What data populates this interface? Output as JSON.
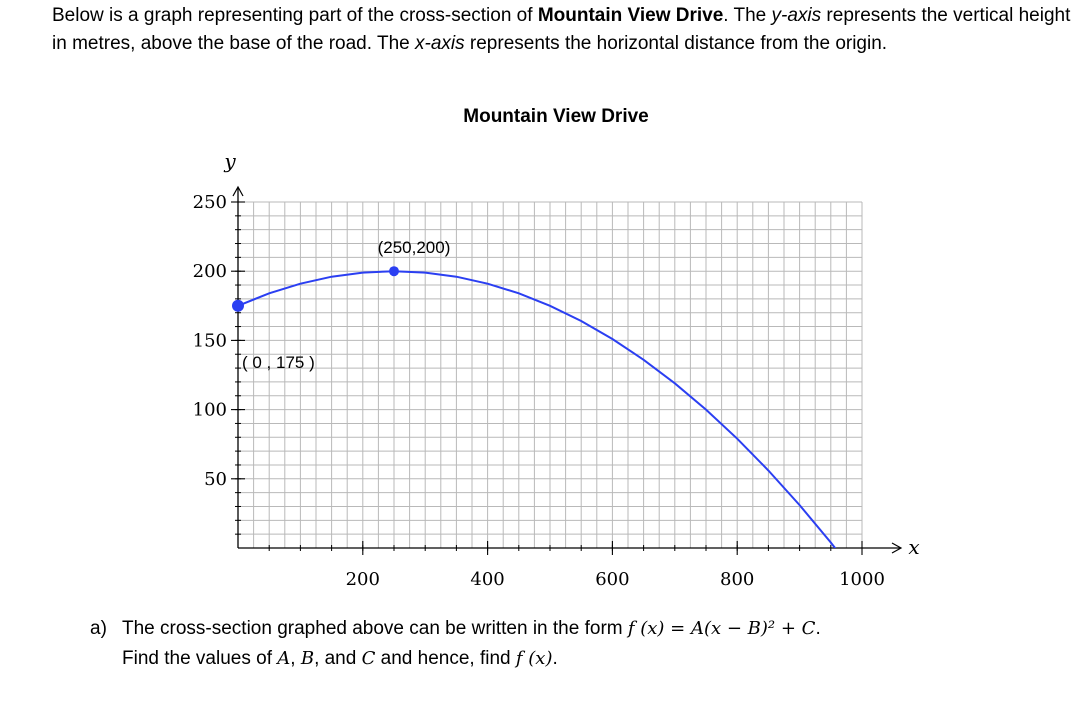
{
  "intro": {
    "t1": "Below is a graph representing part of the cross-section of ",
    "road": "Mountain View Drive",
    "t2": ".  The ",
    "yaxis": "y-axis",
    "t3": " represents the vertical height in metres, above the base of the road. The ",
    "xaxis": "x-axis",
    "t4": " represents the horizontal distance from the origin."
  },
  "chart_data": {
    "type": "line",
    "title": "Mountain View Drive",
    "xlabel": "x",
    "ylabel": "y",
    "xlim": [
      0,
      1000
    ],
    "ylim": [
      0,
      250
    ],
    "xticks": [
      200,
      400,
      600,
      800,
      1000
    ],
    "yticks": [
      50,
      100,
      150,
      200,
      250
    ],
    "grid": true,
    "series": [
      {
        "x": [
          0,
          50,
          100,
          150,
          200,
          250,
          300,
          350,
          400,
          450,
          500,
          550,
          600,
          650,
          700,
          750,
          800,
          850,
          900,
          950,
          1000
        ],
        "y": [
          175,
          184,
          191,
          196,
          199,
          200,
          199,
          196,
          191,
          184,
          175,
          164,
          151,
          136,
          119,
          100,
          79,
          56,
          31,
          4,
          -25
        ],
        "color": "#2b3ff2"
      }
    ],
    "points": [
      {
        "x": 0,
        "y": 175,
        "label": "( 0 , 175 )"
      },
      {
        "x": 250,
        "y": 200,
        "label": "(250,200)"
      }
    ]
  },
  "question": {
    "label": "a)",
    "t1": "The cross-section graphed above can be written in the form ",
    "form": "f (x) = A(x − B)² + C",
    "t2": ".",
    "t3": "Find the values of ",
    "a": "A",
    "sep1": ", ",
    "b": "B",
    "sep2": ", and ",
    "c": "C",
    "t4": " and hence, find ",
    "fx": "f (x)",
    "t5": "."
  }
}
